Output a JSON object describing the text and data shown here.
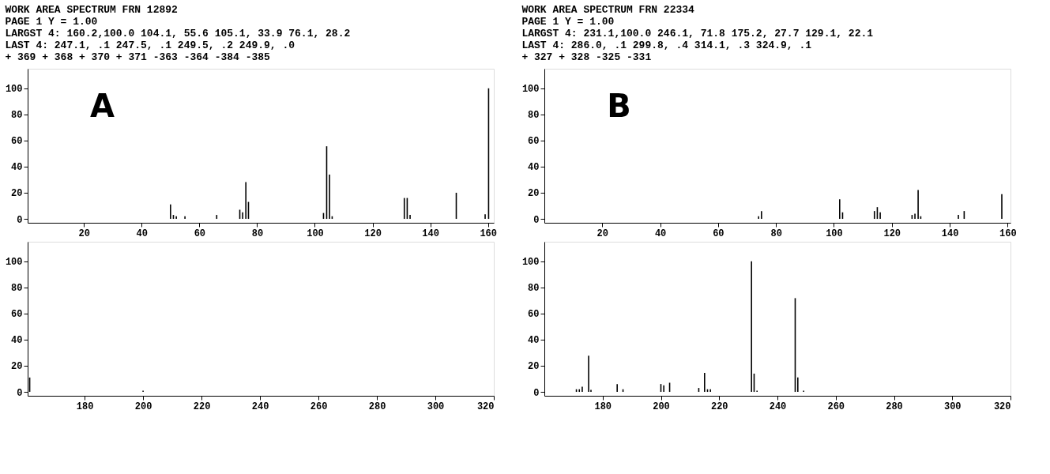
{
  "chart_data": [
    {
      "type": "bar",
      "title": "WORK AREA SPECTRUM   FRN 12892",
      "annotations": [
        "PAGE 1  Y =  1.00",
        "LARGST 4:     160.2,100.0     104.1, 55.6     105.1, 33.9     76.1, 28.2",
        "LAST 4:       247.1,    .1     247.5,    .1     249.5,    .2     249.9,    .0",
        "+ 369 + 368 + 370 + 371 -363 -364 -384 -385",
        "A"
      ],
      "x": [
        50,
        51,
        52,
        55,
        66,
        74,
        75,
        76.1,
        77,
        103,
        104.1,
        105.1,
        106,
        131,
        132,
        133,
        149,
        159,
        160.2
      ],
      "values": [
        11,
        3,
        2,
        2,
        3,
        7,
        5,
        28.2,
        13,
        4.5,
        55.6,
        33.9,
        2,
        16,
        16,
        3,
        20,
        3.5,
        100
      ],
      "color": "#000000",
      "xlim": [
        0.5,
        162
      ],
      "xticks": [
        20,
        40,
        60,
        80,
        100,
        120,
        140,
        160
      ],
      "ylim": [
        -3,
        115
      ],
      "yticks": [
        0,
        20,
        40,
        60,
        80,
        100
      ]
    },
    {
      "type": "bar",
      "x": [
        161.2,
        200
      ],
      "values": [
        11,
        1
      ],
      "color": "#000000",
      "xlim": [
        160.5,
        320
      ],
      "xticks": [
        180,
        200,
        220,
        240,
        260,
        280,
        300,
        320
      ],
      "ylim": [
        -3,
        115
      ],
      "yticks": [
        0,
        20,
        40,
        60,
        80,
        100
      ]
    },
    {
      "type": "bar",
      "title": "WORK AREA SPECTRUM   FRN 22334",
      "annotations": [
        "PAGE 1  Y =  1.00",
        "LARGST 4:      231.1,100.0     246.1, 71.8     175.2, 27.7     129.1, 22.1",
        "LAST 4:        286.0,    .1     299.8,    .4     314.1,    .3     324.9,    .1",
        "+ 327 + 328 -325 -331",
        "B"
      ],
      "x": [
        74,
        75,
        102,
        103,
        114,
        115,
        116,
        127,
        128,
        129.1,
        130,
        143,
        145,
        158
      ],
      "values": [
        2,
        6,
        15,
        5,
        6,
        9,
        5,
        3,
        4,
        22.1,
        2,
        3,
        6,
        19
      ],
      "color": "#000000",
      "xlim": [
        0,
        161
      ],
      "xticks": [
        20,
        40,
        60,
        80,
        100,
        120,
        140,
        160
      ],
      "ylim": [
        -3,
        115
      ],
      "yticks": [
        0,
        20,
        40,
        60,
        80,
        100
      ]
    },
    {
      "type": "bar",
      "x": [
        171,
        172,
        173,
        175.2,
        176,
        185,
        187,
        200,
        201,
        203,
        213,
        215,
        216,
        217,
        231.1,
        232,
        233,
        246.1,
        247,
        249
      ],
      "values": [
        2,
        2,
        4,
        27.7,
        1.6,
        6,
        2,
        6,
        5,
        7,
        3,
        14.6,
        2,
        2,
        100,
        14,
        1,
        71.8,
        11,
        1
      ],
      "color": "#000000",
      "xlim": [
        160,
        320
      ],
      "xticks": [
        180,
        200,
        220,
        240,
        260,
        280,
        300,
        320
      ],
      "ylim": [
        -3,
        115
      ],
      "yticks": [
        0,
        20,
        40,
        60,
        80,
        100
      ]
    }
  ]
}
